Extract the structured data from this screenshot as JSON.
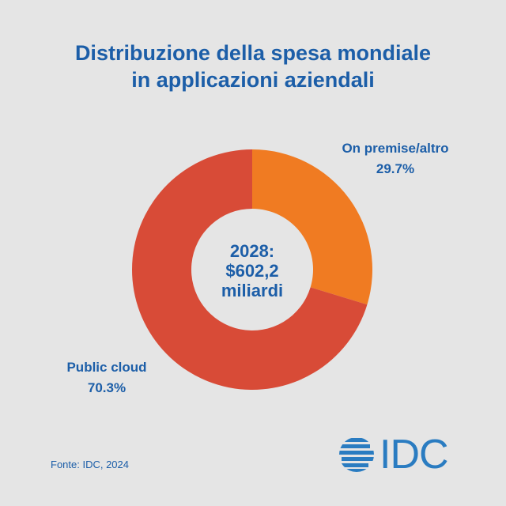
{
  "chart_data": {
    "type": "pie",
    "title": "Distribuzione della spesa mondiale in applicazioni aziendali",
    "title_lines": [
      "Distribuzione della spesa mondiale",
      "in applicazioni aziendali"
    ],
    "donut": true,
    "center_text": [
      "2028:",
      "$602,2",
      "miliardi"
    ],
    "slices": [
      {
        "label": "On premise/altro",
        "value": 29.7,
        "value_label": "29.7%",
        "color": "#f07b22"
      },
      {
        "label": "Public cloud",
        "value": 70.3,
        "value_label": "70.3%",
        "color": "#d84b37"
      }
    ]
  },
  "source": "Fonte: IDC, 2024",
  "logo": {
    "text": "IDC",
    "color": "#2a7cc1"
  }
}
